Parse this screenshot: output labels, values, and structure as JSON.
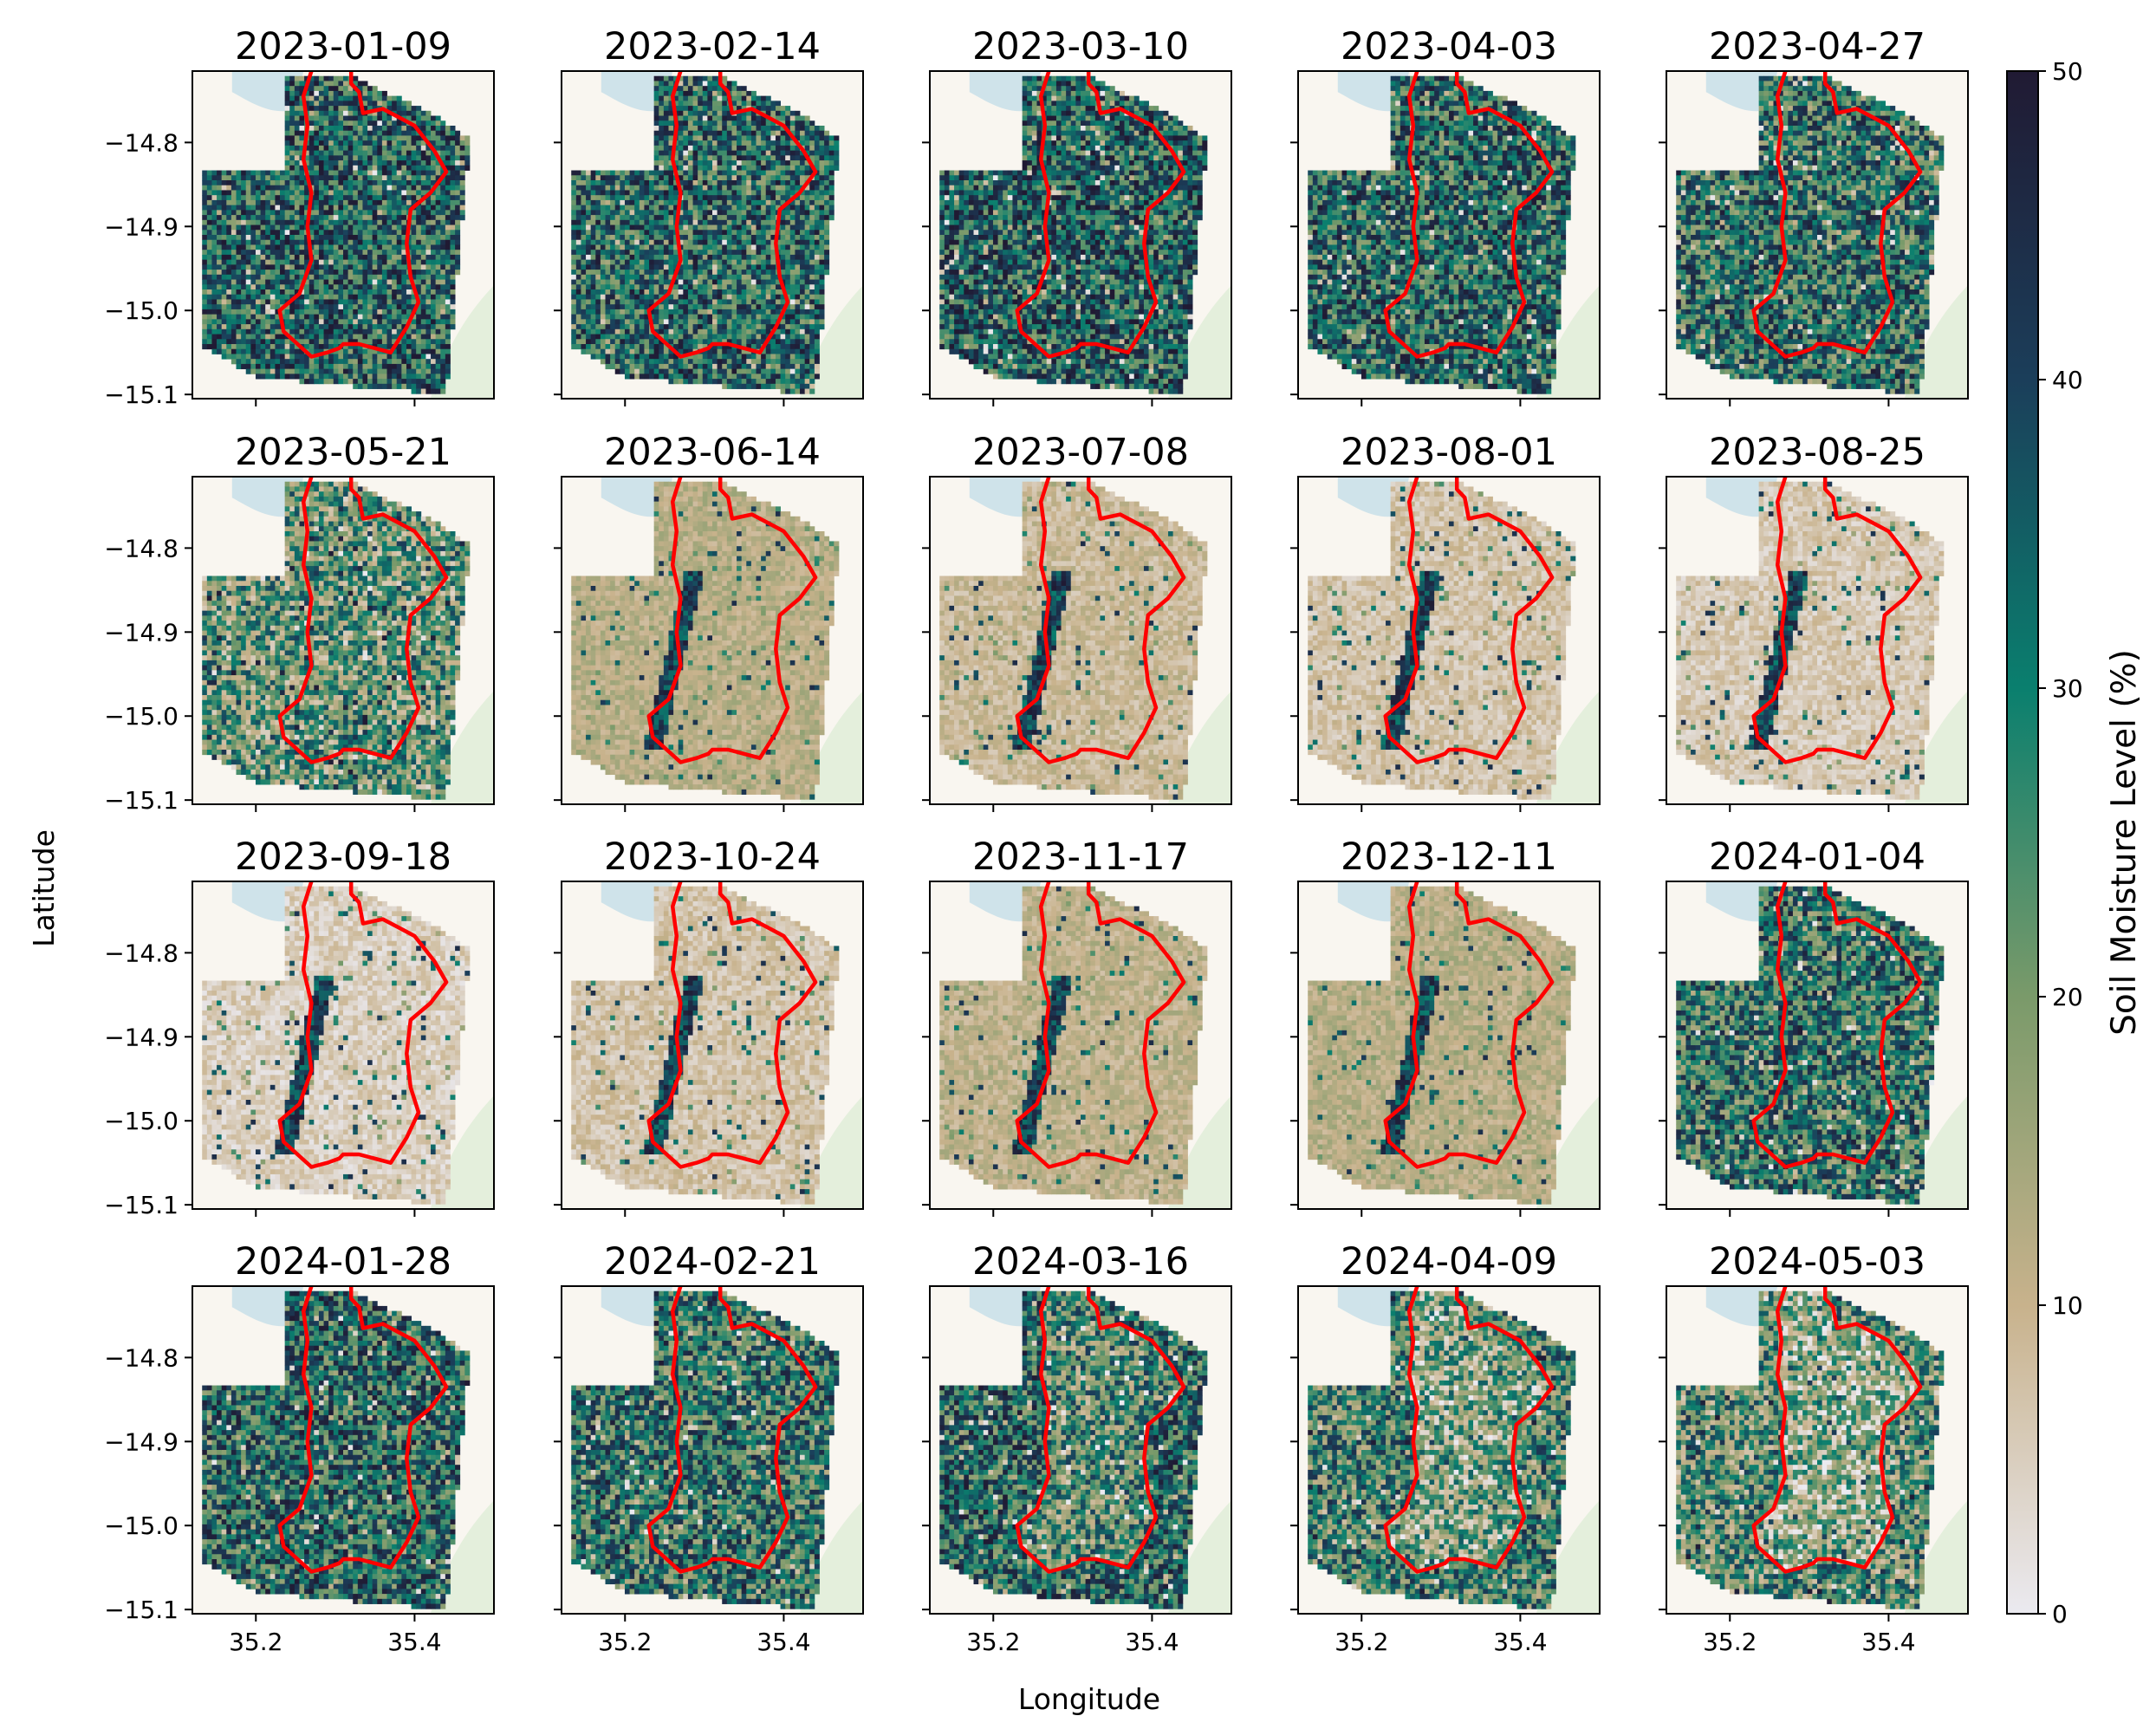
{
  "chart_data": {
    "type": "heatmap",
    "title": "",
    "xlabel": "Longitude",
    "ylabel": "Latitude",
    "colorbar": {
      "label": "Soil Moisture Level (%)",
      "range": [
        0,
        50
      ],
      "ticks": [
        "0",
        "10",
        "20",
        "30",
        "40",
        "50"
      ],
      "colors": [
        "#ebeaf0",
        "#c8b28c",
        "#7a9a6a",
        "#0a7f6e",
        "#1b3e5a",
        "#201a33"
      ]
    },
    "x_range": [
      35.12,
      35.5
    ],
    "y_range": [
      -15.105,
      -14.715
    ],
    "x_ticks": [
      "35.2",
      "35.4"
    ],
    "y_ticks": [
      "−14.8",
      "−14.9",
      "−15.0",
      "−15.1"
    ],
    "boundary_color": "#ff0000",
    "panel_titles": [
      "2023-01-09",
      "2023-02-14",
      "2023-03-10",
      "2023-04-03",
      "2023-04-27",
      "2023-05-21",
      "2023-06-14",
      "2023-07-08",
      "2023-08-01",
      "2023-08-25",
      "2023-09-18",
      "2023-10-24",
      "2023-11-17",
      "2023-12-11",
      "2024-01-04",
      "2024-01-28",
      "2024-02-21",
      "2024-03-16",
      "2024-04-09",
      "2024-05-03"
    ],
    "approx_mean_moisture_pct": [
      34,
      33,
      35,
      33,
      31,
      22,
      12,
      9,
      7,
      6,
      5,
      7,
      11,
      12,
      30,
      33,
      30,
      33,
      27,
      24
    ],
    "boundary_polygon_lonlat": [
      [
        35.27,
        -14.715
      ],
      [
        35.26,
        -14.745
      ],
      [
        35.265,
        -14.78
      ],
      [
        35.26,
        -14.82
      ],
      [
        35.27,
        -14.86
      ],
      [
        35.265,
        -14.9
      ],
      [
        35.27,
        -14.94
      ],
      [
        35.255,
        -14.98
      ],
      [
        35.23,
        -15.0
      ],
      [
        35.235,
        -15.025
      ],
      [
        35.27,
        -15.055
      ],
      [
        35.29,
        -15.05
      ],
      [
        35.305,
        -15.045
      ],
      [
        35.31,
        -15.04
      ],
      [
        35.33,
        -15.04
      ],
      [
        35.35,
        -15.045
      ],
      [
        35.37,
        -15.05
      ],
      [
        35.39,
        -15.02
      ],
      [
        35.405,
        -14.99
      ],
      [
        35.395,
        -14.96
      ],
      [
        35.39,
        -14.92
      ],
      [
        35.395,
        -14.88
      ],
      [
        35.42,
        -14.86
      ],
      [
        35.44,
        -14.835
      ],
      [
        35.425,
        -14.81
      ],
      [
        35.4,
        -14.78
      ],
      [
        35.38,
        -14.77
      ],
      [
        35.36,
        -14.76
      ],
      [
        35.335,
        -14.765
      ],
      [
        35.33,
        -14.74
      ],
      [
        35.32,
        -14.73
      ],
      [
        35.32,
        -14.715
      ]
    ],
    "grid": false,
    "legend": "colorbar-right"
  }
}
